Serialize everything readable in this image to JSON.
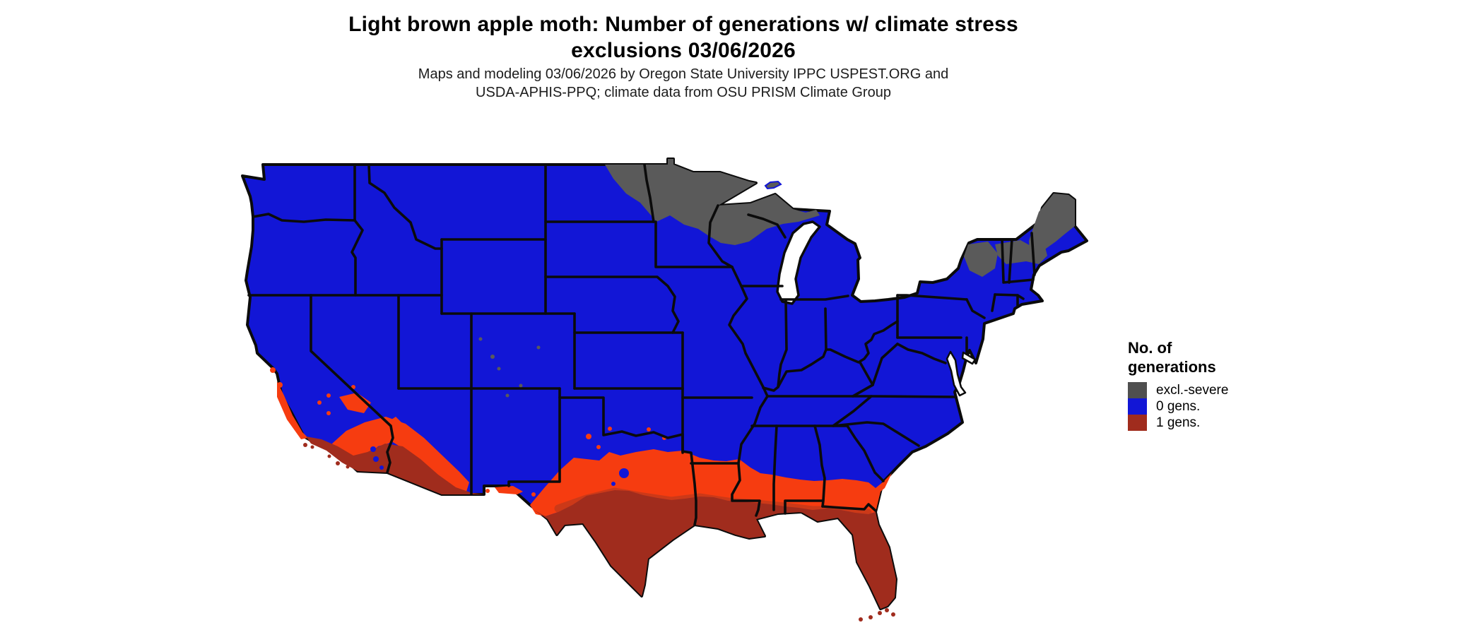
{
  "title": {
    "line1": "Light brown apple moth: Number of generations w/ climate stress",
    "line2": "exclusions 03/06/2026"
  },
  "subtitle": {
    "line1": "Maps and modeling 03/06/2026 by Oregon State University IPPC USPEST.ORG and",
    "line2": "USDA-APHIS-PPQ; climate data from OSU PRISM Climate Group"
  },
  "legend": {
    "title_line1": "No. of",
    "title_line2": "generations",
    "items": [
      {
        "label": "excl.-severe",
        "color": "#4f4f4f"
      },
      {
        "label": "0 gens.",
        "color": "#1216d6"
      },
      {
        "label": "1 gens.",
        "color": "#a02c1d"
      }
    ]
  },
  "map": {
    "kind": "choropleth raster map of contiguous United States with state borders",
    "colors": {
      "blue": "#1216d6",
      "gray": "#5a5a5a",
      "orange": "#f63c10",
      "mid": "#c8391a",
      "red": "#a02c1d",
      "outline": "#0b0b0b",
      "lake": "#ffffff"
    },
    "classes": [
      {
        "value": "excl.-severe",
        "meaning": "excluded - severe climate stress",
        "areas": "northern Minnesota, northern Wisconsin, Lake Superior shore of Michigan UP, northeastern North Dakota, Adirondacks of New York, northern Vermont and New Hampshire, interior Maine"
      },
      {
        "value": "0 gens.",
        "meaning": "zero generations",
        "areas": "most of the contiguous United States"
      },
      {
        "value": "1 gens.",
        "meaning": "one generation",
        "areas": "southern Texas, Gulf Coast and southern Louisiana, Florida peninsula, southern Arizona, southern California coast, with an orange transition band across the southern states"
      }
    ]
  }
}
